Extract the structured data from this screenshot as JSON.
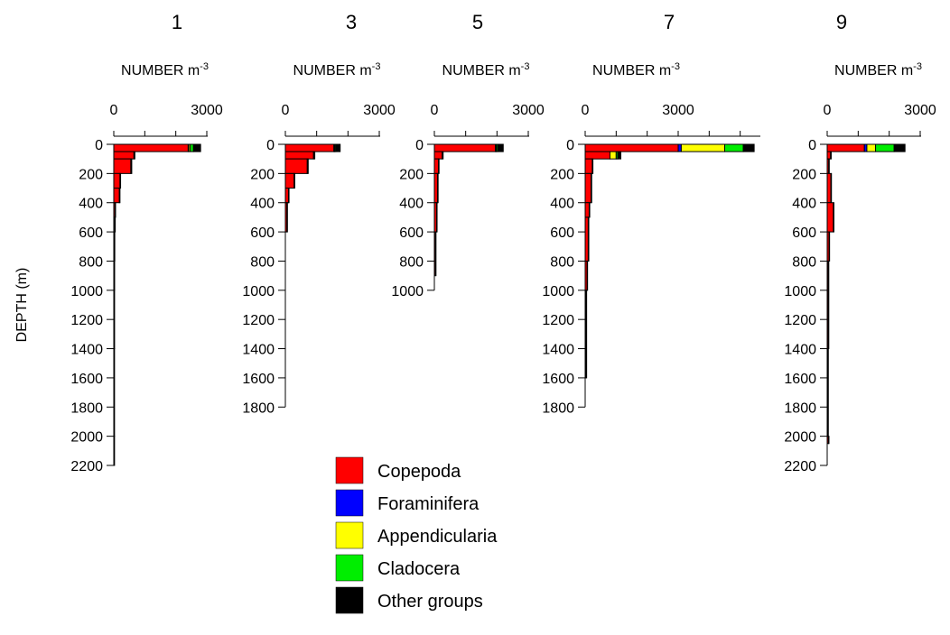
{
  "chart_data": {
    "type": "bar",
    "orientation": "horizontal-stacked",
    "ylabel": "DEPTH (m)",
    "xunit": "NUMBER m",
    "xunit_superscript": "-3",
    "legend": {
      "placement": "bottom-center",
      "entries": [
        {
          "name": "Copepoda",
          "color": "#ff0000"
        },
        {
          "name": "Foraminifera",
          "color": "#0000ff"
        },
        {
          "name": "Appendicularia",
          "color": "#ffff00"
        },
        {
          "name": "Cladocera",
          "color": "#00ee00"
        },
        {
          "name": "Other groups",
          "color": "#000000"
        }
      ]
    },
    "panels": [
      {
        "title": "1",
        "xlim": [
          0,
          3000
        ],
        "xticks": [
          "0",
          "3000"
        ],
        "xtick_values": [
          0,
          3000
        ],
        "ylim": [
          0,
          2200
        ],
        "yticks": [
          "0",
          "200",
          "400",
          "600",
          "800",
          "1000",
          "1200",
          "1400",
          "1600",
          "1800",
          "2000",
          "2200"
        ],
        "ytick_values": [
          0,
          200,
          400,
          600,
          800,
          1000,
          1200,
          1400,
          1600,
          1800,
          2000,
          2200
        ],
        "layers": [
          {
            "depth": [
              0,
              50
            ],
            "values": [
              2400,
              20,
              50,
              100,
              230
            ]
          },
          {
            "depth": [
              50,
              100
            ],
            "values": [
              650,
              0,
              0,
              0,
              30
            ]
          },
          {
            "depth": [
              100,
              200
            ],
            "values": [
              550,
              0,
              0,
              0,
              30
            ]
          },
          {
            "depth": [
              200,
              300
            ],
            "values": [
              200,
              0,
              0,
              0,
              20
            ]
          },
          {
            "depth": [
              300,
              400
            ],
            "values": [
              180,
              0,
              0,
              0,
              20
            ]
          },
          {
            "depth": [
              400,
              500
            ],
            "values": [
              40,
              0,
              0,
              0,
              5
            ]
          },
          {
            "depth": [
              500,
              600
            ],
            "values": [
              30,
              0,
              0,
              0,
              5
            ]
          },
          {
            "depth": [
              600,
              800
            ],
            "values": [
              15,
              0,
              0,
              0,
              5
            ]
          },
          {
            "depth": [
              800,
              1000
            ],
            "values": [
              10,
              0,
              0,
              0,
              5
            ]
          },
          {
            "depth": [
              1000,
              1400
            ],
            "values": [
              8,
              0,
              0,
              0,
              4
            ]
          },
          {
            "depth": [
              1400,
              2000
            ],
            "values": [
              6,
              0,
              0,
              0,
              3
            ]
          },
          {
            "depth": [
              2000,
              2200
            ],
            "values": [
              6,
              0,
              0,
              0,
              3
            ]
          }
        ]
      },
      {
        "title": "3",
        "xlim": [
          0,
          3000
        ],
        "xticks": [
          "0",
          "3000"
        ],
        "xtick_values": [
          0,
          3000
        ],
        "ylim": [
          0,
          1800
        ],
        "yticks": [
          "0",
          "200",
          "400",
          "600",
          "800",
          "1000",
          "1200",
          "1400",
          "1600",
          "1800"
        ],
        "ytick_values": [
          0,
          200,
          400,
          600,
          800,
          1000,
          1200,
          1400,
          1600,
          1800
        ],
        "layers": [
          {
            "depth": [
              0,
              50
            ],
            "values": [
              1550,
              10,
              20,
              30,
              140
            ]
          },
          {
            "depth": [
              50,
              100
            ],
            "values": [
              900,
              0,
              0,
              0,
              40
            ]
          },
          {
            "depth": [
              100,
              200
            ],
            "values": [
              700,
              0,
              0,
              0,
              30
            ]
          },
          {
            "depth": [
              200,
              300
            ],
            "values": [
              280,
              0,
              0,
              0,
              20
            ]
          },
          {
            "depth": [
              300,
              400
            ],
            "values": [
              100,
              0,
              0,
              0,
              10
            ]
          },
          {
            "depth": [
              400,
              600
            ],
            "values": [
              50,
              0,
              0,
              0,
              10
            ]
          }
        ]
      },
      {
        "title": "5",
        "xlim": [
          0,
          3000
        ],
        "xticks": [
          "0",
          "3000"
        ],
        "xtick_values": [
          0,
          3000
        ],
        "ylim": [
          0,
          1000
        ],
        "yticks": [
          "0",
          "200",
          "400",
          "600",
          "800",
          "1000"
        ],
        "ytick_values": [
          0,
          200,
          400,
          600,
          800,
          1000
        ],
        "layers": [
          {
            "depth": [
              0,
              50
            ],
            "values": [
              1950,
              10,
              20,
              40,
              180
            ]
          },
          {
            "depth": [
              50,
              100
            ],
            "values": [
              250,
              0,
              0,
              0,
              30
            ]
          },
          {
            "depth": [
              100,
              200
            ],
            "values": [
              130,
              0,
              0,
              0,
              20
            ]
          },
          {
            "depth": [
              200,
              400
            ],
            "values": [
              100,
              0,
              0,
              0,
              20
            ]
          },
          {
            "depth": [
              400,
              600
            ],
            "values": [
              70,
              0,
              0,
              0,
              10
            ]
          },
          {
            "depth": [
              600,
              900
            ],
            "values": [
              35,
              0,
              0,
              0,
              5
            ]
          }
        ]
      },
      {
        "title": "7",
        "xlim": [
          0,
          5500
        ],
        "xticks": [
          "0",
          "3000"
        ],
        "xtick_values": [
          0,
          3000
        ],
        "ylim": [
          0,
          1800
        ],
        "yticks": [
          "0",
          "200",
          "400",
          "600",
          "800",
          "1000",
          "1200",
          "1400",
          "1600",
          "1800"
        ],
        "ytick_values": [
          0,
          200,
          400,
          600,
          800,
          1000,
          1200,
          1400,
          1600,
          1800
        ],
        "layers": [
          {
            "depth": [
              0,
              50
            ],
            "values": [
              3000,
              100,
              1400,
              600,
              350
            ]
          },
          {
            "depth": [
              50,
              100
            ],
            "values": [
              800,
              0,
              200,
              50,
              100
            ]
          },
          {
            "depth": [
              100,
              200
            ],
            "values": [
              230,
              0,
              0,
              0,
              20
            ]
          },
          {
            "depth": [
              200,
              400
            ],
            "values": [
              190,
              0,
              0,
              0,
              20
            ]
          },
          {
            "depth": [
              400,
              500
            ],
            "values": [
              130,
              0,
              0,
              0,
              10
            ]
          },
          {
            "depth": [
              500,
              800
            ],
            "values": [
              100,
              0,
              0,
              0,
              10
            ]
          },
          {
            "depth": [
              800,
              1000
            ],
            "values": [
              60,
              0,
              0,
              0,
              5
            ]
          },
          {
            "depth": [
              1000,
              1600
            ],
            "values": [
              30,
              0,
              0,
              0,
              5
            ]
          }
        ]
      },
      {
        "title": "9",
        "xlim": [
          0,
          3000
        ],
        "xticks": [
          "0",
          "3000"
        ],
        "xtick_values": [
          0,
          3000
        ],
        "ylim": [
          0,
          2200
        ],
        "yticks": [
          "0",
          "200",
          "400",
          "600",
          "800",
          "1000",
          "1200",
          "1400",
          "1600",
          "1800",
          "2000",
          "2200"
        ],
        "ytick_values": [
          0,
          200,
          400,
          600,
          800,
          1000,
          1200,
          1400,
          1600,
          1800,
          2000,
          2200
        ],
        "layers": [
          {
            "depth": [
              0,
              50
            ],
            "values": [
              1200,
              80,
              280,
              600,
              350
            ]
          },
          {
            "depth": [
              50,
              100
            ],
            "values": [
              110,
              0,
              0,
              0,
              20
            ]
          },
          {
            "depth": [
              100,
              200
            ],
            "values": [
              50,
              0,
              0,
              0,
              10
            ]
          },
          {
            "depth": [
              200,
              400
            ],
            "values": [
              120,
              0,
              0,
              0,
              10
            ]
          },
          {
            "depth": [
              400,
              600
            ],
            "values": [
              200,
              0,
              0,
              0,
              10
            ]
          },
          {
            "depth": [
              600,
              800
            ],
            "values": [
              60,
              0,
              0,
              0,
              5
            ]
          },
          {
            "depth": [
              800,
              1400
            ],
            "values": [
              35,
              0,
              0,
              0,
              5
            ]
          },
          {
            "depth": [
              1400,
              2000
            ],
            "values": [
              20,
              0,
              0,
              0,
              5
            ]
          },
          {
            "depth": [
              2000,
              2050
            ],
            "values": [
              40,
              0,
              0,
              0,
              5
            ]
          }
        ]
      }
    ]
  }
}
